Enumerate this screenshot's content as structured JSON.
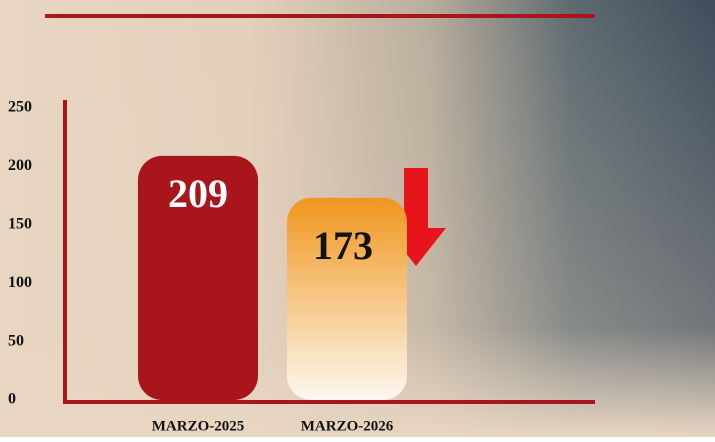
{
  "chart_data": {
    "type": "bar",
    "categories": [
      "MARZO-2025",
      "MARZO-2026"
    ],
    "values": [
      209,
      173
    ],
    "colors": [
      "#a8151b",
      "#f0961e"
    ],
    "ylim": [
      0,
      250
    ],
    "yticks": [
      0,
      50,
      100,
      150,
      200,
      250
    ]
  }
}
